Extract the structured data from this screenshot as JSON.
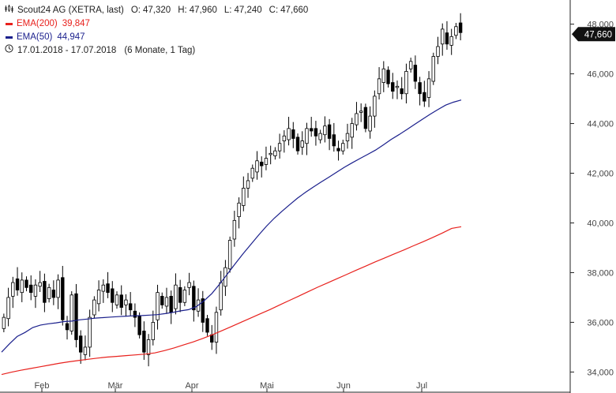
{
  "legend": {
    "title": "Scout24 AG (XETRA, last)",
    "open_label": "O:",
    "open": "47,320",
    "high_label": "H:",
    "high": "47,960",
    "low_label": "L:",
    "low": "47,240",
    "close_label": "C:",
    "close": "47,660",
    "ema200_label": "EMA(200)",
    "ema200": "39,847",
    "ema50_label": "EMA(50)",
    "ema50": "44,947",
    "range": "17.01.2018 - 17.07.2018",
    "range_note": "(6 Monate, 1 Tag)"
  },
  "colors": {
    "ema200": "#e8211d",
    "ema50": "#1a1f8c",
    "candle": "#000000",
    "price_tag_bg": "#111111"
  },
  "chart_data": {
    "type": "candlestick",
    "ylim": [
      33.6,
      48.4
    ],
    "y_ticks": [
      "34,000",
      "36,000",
      "38,000",
      "40,000",
      "42,000",
      "44,000",
      "46,000",
      "48,000"
    ],
    "y_tick_values": [
      34,
      36,
      38,
      40,
      42,
      44,
      46,
      48
    ],
    "x_ticks": [
      "Feb",
      "Mär",
      "Apr",
      "Mai",
      "Jun",
      "Jul"
    ],
    "last_price_label": "47,660",
    "last_price": 47.66,
    "grid": false,
    "close": [
      36.2,
      37.0,
      37.6,
      37.3,
      37.7,
      37.4,
      37.2,
      37.5,
      37.6,
      36.8,
      37.4,
      37.0,
      37.7,
      36.1,
      35.7,
      37.1,
      35.3,
      34.8,
      35.0,
      36.2,
      36.9,
      37.3,
      37.5,
      37.2,
      36.8,
      37.1,
      36.6,
      36.9,
      36.5,
      36.2,
      35.5,
      34.8,
      35.3,
      36.0,
      37.2,
      36.7,
      37.0,
      36.4,
      37.5,
      36.8,
      37.3,
      37.6,
      36.5,
      36.9,
      36.0,
      35.6,
      35.2,
      36.4,
      37.6,
      38.2,
      39.3,
      40.1,
      40.8,
      41.4,
      41.7,
      42.2,
      42.5,
      42.3,
      42.6,
      42.8,
      42.9,
      43.2,
      43.5,
      43.8,
      43.4,
      42.9,
      43.3,
      43.8,
      43.7,
      43.5,
      43.6,
      43.9,
      43.4,
      43.1,
      42.9,
      43.2,
      43.6,
      44.0,
      44.4,
      44.5,
      43.8,
      44.3,
      45.1,
      45.8,
      46.2,
      45.6,
      45.3,
      45.5,
      45.2,
      46.1,
      46.5,
      45.7,
      45.2,
      44.9,
      45.8,
      46.7,
      47.1,
      47.8,
      47.2,
      47.5,
      47.9,
      47.66
    ],
    "ema50": [
      34.8,
      35.13,
      35.43,
      35.59,
      35.79,
      35.89,
      35.94,
      35.98,
      36.03,
      36.05,
      36.1,
      36.13,
      36.17,
      36.19,
      36.21,
      36.23,
      36.25,
      36.26,
      36.27,
      36.29,
      36.31,
      36.35,
      36.4,
      36.46,
      36.51,
      36.63,
      36.87,
      37.16,
      37.54,
      37.95,
      38.36,
      38.76,
      39.14,
      39.51,
      39.87,
      40.19,
      40.47,
      40.74,
      41.0,
      41.23,
      41.44,
      41.64,
      41.84,
      42.04,
      42.24,
      42.42,
      42.59,
      42.76,
      42.93,
      43.14,
      43.36,
      43.55,
      43.75,
      43.96,
      44.17,
      44.37,
      44.56,
      44.74,
      44.86,
      44.947
    ],
    "ema200": [
      33.9,
      33.99,
      34.07,
      34.14,
      34.21,
      34.28,
      34.35,
      34.41,
      34.46,
      34.51,
      34.56,
      34.6,
      34.63,
      34.66,
      34.69,
      34.72,
      34.77,
      34.86,
      34.97,
      35.09,
      35.21,
      35.35,
      35.5,
      35.66,
      35.83,
      36.0,
      36.17,
      36.34,
      36.51,
      36.69,
      36.87,
      37.05,
      37.23,
      37.41,
      37.58,
      37.75,
      37.92,
      38.09,
      38.26,
      38.43,
      38.59,
      38.75,
      38.91,
      39.08,
      39.24,
      39.41,
      39.59,
      39.78,
      39.847
    ]
  }
}
